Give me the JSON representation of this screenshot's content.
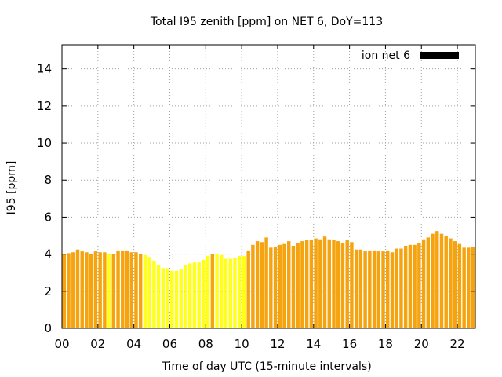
{
  "chart_data": {
    "type": "bar",
    "title": "Total I95 zenith [ppm] on NET 6, DoY=113",
    "xlabel": "Time of day UTC (15-minute intervals)",
    "ylabel": "I95 [ppm]",
    "xlim": [
      0,
      23
    ],
    "ylim": [
      0,
      15.3
    ],
    "x_ticks": [
      "00",
      "02",
      "04",
      "06",
      "08",
      "10",
      "12",
      "14",
      "16",
      "18",
      "20",
      "22"
    ],
    "y_ticks": [
      "0",
      "2",
      "4",
      "6",
      "8",
      "10",
      "12",
      "14"
    ],
    "grid": true,
    "legend": {
      "position": "top-right",
      "entries": [
        {
          "label": "ion net 6",
          "color": "#000000"
        }
      ]
    },
    "colors": {
      "orange": "#f5a30f",
      "yellow": "#ffff1a"
    },
    "series": [
      {
        "interval_hours": 0.25,
        "values": [
          4.0,
          4.05,
          4.1,
          4.25,
          4.15,
          4.1,
          4.0,
          4.15,
          4.1,
          4.1,
          4.0,
          4.0,
          4.2,
          4.2,
          4.2,
          4.1,
          4.1,
          4.0,
          3.95,
          3.85,
          3.65,
          3.4,
          3.25,
          3.25,
          3.1,
          3.1,
          3.2,
          3.4,
          3.5,
          3.55,
          3.55,
          3.7,
          3.9,
          4.0,
          4.0,
          3.95,
          3.75,
          3.75,
          3.8,
          3.9,
          3.9,
          4.2,
          4.5,
          4.7,
          4.65,
          4.9,
          4.35,
          4.4,
          4.5,
          4.55,
          4.7,
          4.45,
          4.6,
          4.7,
          4.75,
          4.75,
          4.85,
          4.8,
          4.95,
          4.8,
          4.75,
          4.7,
          4.6,
          4.75,
          4.65,
          4.25,
          4.25,
          4.15,
          4.2,
          4.2,
          4.15,
          4.15,
          4.2,
          4.1,
          4.3,
          4.3,
          4.45,
          4.5,
          4.5,
          4.6,
          4.8,
          4.9,
          5.1,
          5.25,
          5.1,
          5.0,
          4.85,
          4.7,
          4.55,
          4.35,
          4.35,
          4.4
        ],
        "color_class": [
          "o",
          "o",
          "o",
          "o",
          "o",
          "o",
          "o",
          "o",
          "o",
          "o",
          "y",
          "o",
          "o",
          "o",
          "o",
          "o",
          "o",
          "o",
          "y",
          "y",
          "y",
          "y",
          "y",
          "y",
          "y",
          "y",
          "y",
          "y",
          "y",
          "y",
          "y",
          "y",
          "y",
          "o",
          "y",
          "y",
          "y",
          "y",
          "y",
          "y",
          "y",
          "o",
          "o",
          "o",
          "o",
          "o",
          "o",
          "o",
          "o",
          "o",
          "o",
          "o",
          "o",
          "o",
          "o",
          "o",
          "o",
          "o",
          "o",
          "o",
          "o",
          "o",
          "o",
          "o",
          "o",
          "o",
          "o",
          "o",
          "o",
          "o",
          "o",
          "o",
          "o",
          "o",
          "o",
          "o",
          "o",
          "o",
          "o",
          "o",
          "o",
          "o",
          "o",
          "o",
          "o",
          "o",
          "o",
          "o",
          "o",
          "o",
          "o",
          "o"
        ]
      }
    ]
  }
}
